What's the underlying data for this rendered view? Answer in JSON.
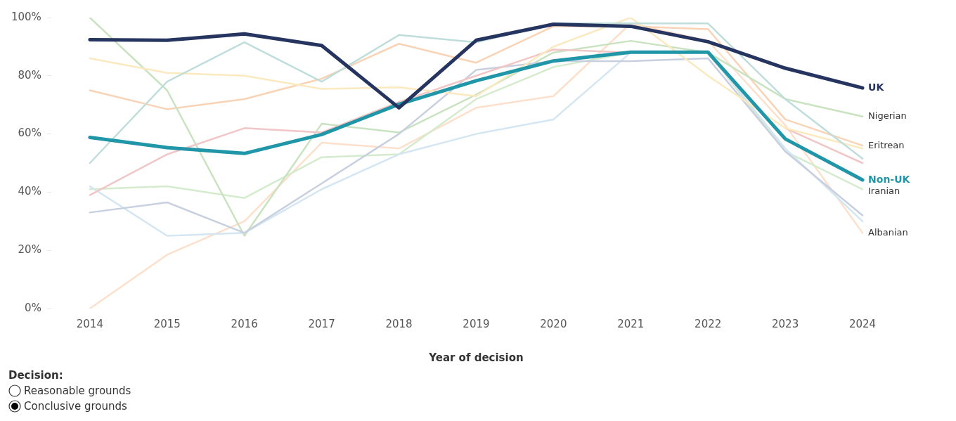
{
  "chart_data": {
    "type": "line",
    "xlabel": "Year of decision",
    "categories": [
      "2014",
      "2015",
      "2016",
      "2017",
      "2018",
      "2019",
      "2020",
      "2021",
      "2022",
      "2023",
      "2024"
    ],
    "ylim": [
      0,
      100
    ],
    "yticks": [
      {
        "value": 0,
        "label": "0%"
      },
      {
        "value": 20,
        "label": "20%"
      },
      {
        "value": 40,
        "label": "40%"
      },
      {
        "value": 60,
        "label": "60%"
      },
      {
        "value": 80,
        "label": "80%"
      },
      {
        "value": 100,
        "label": "100%"
      }
    ],
    "grid": false,
    "legend": false,
    "marker": "none",
    "line_style": "solid",
    "annotations": [
      "Decision:",
      "Reasonable grounds",
      "Conclusive grounds"
    ],
    "series": [
      {
        "color": "#bfdedb",
        "values": [
          50,
          78,
          91.5,
          78,
          94,
          91.5,
          98,
          98,
          98,
          72,
          51.5
        ]
      },
      {
        "color": "#fbe9c0",
        "values": [
          86,
          81,
          80,
          75.5,
          76,
          73,
          90,
          100,
          80,
          62,
          55
        ]
      },
      {
        "color": "#f2c6c6",
        "values": [
          39,
          53,
          62,
          60.5,
          71,
          80,
          89,
          88,
          null,
          62,
          50
        ]
      },
      {
        "color": "#c8d0e0",
        "values": [
          33,
          36.5,
          26,
          43,
          60,
          82,
          85,
          85,
          86,
          54,
          32
        ]
      },
      {
        "color": "#d3e6f1",
        "values": [
          42,
          25,
          26,
          41,
          53,
          60,
          65,
          88,
          88,
          55,
          30
        ]
      },
      {
        "name": "Nigerian",
        "color": "#c9e3c1",
        "values": [
          100,
          75,
          25,
          63.5,
          60.5,
          73.5,
          88,
          92,
          88,
          72,
          66
        ]
      },
      {
        "name": "Eritrean",
        "color": "#f9d3b5",
        "values": [
          75,
          68.5,
          72,
          79,
          91,
          84.5,
          97,
          97,
          96,
          65,
          56
        ]
      },
      {
        "name": "Iranian",
        "color": "#d4ebcd",
        "values": [
          41,
          42,
          38,
          52,
          53,
          72,
          83,
          88,
          88,
          54,
          41
        ]
      },
      {
        "name": "Albanian",
        "color": "#fde0cb",
        "values": [
          0,
          18.5,
          30,
          57,
          55,
          69,
          73,
          98,
          92,
          63,
          26
        ]
      },
      {
        "name": "UK",
        "color": "#253560",
        "values": [
          92.4,
          92.2,
          94.4,
          90.4,
          69,
          92.2,
          97.7,
          97,
          91.7,
          82.6,
          75.8
        ]
      },
      {
        "name": "Non-UK",
        "color": "#2096a8",
        "values": [
          58.8,
          55.3,
          53.3,
          59.8,
          70.2,
          78.3,
          85.1,
          88.1,
          88.1,
          58.3,
          44.2
        ]
      }
    ]
  }
}
